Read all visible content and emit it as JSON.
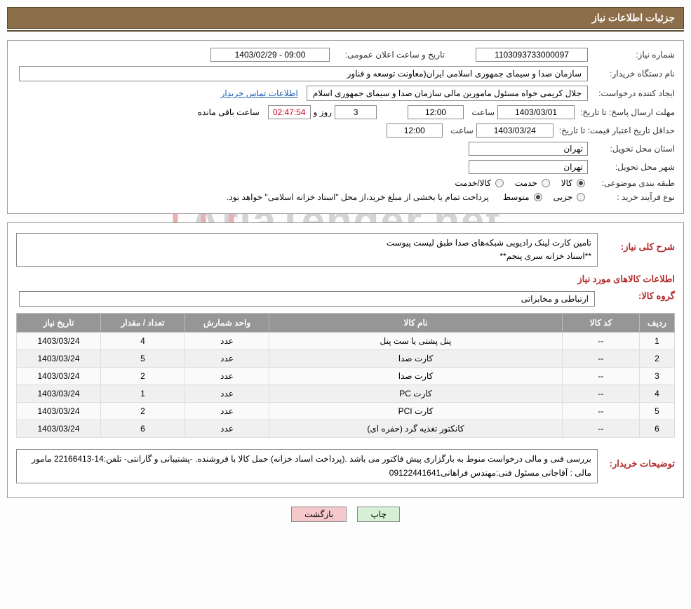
{
  "title": "جزئیات اطلاعات نیاز",
  "labels": {
    "reqNum": "شماره نیاز:",
    "announceDate": "تاریخ و ساعت اعلان عمومی:",
    "buyerOrg": "نام دستگاه خریدار:",
    "requester": "ایجاد کننده درخواست:",
    "contact": "اطلاعات تماس خریدار",
    "replyDeadline": "مهلت ارسال پاسخ: تا تاریخ:",
    "hour": "ساعت",
    "days": "روز و",
    "remaining": "ساعت باقی مانده",
    "priceValidity": "حداقل تاریخ اعتبار قیمت: تا تاریخ:",
    "province": "استان محل تحویل:",
    "city": "شهر محل تحویل:",
    "subjectClass": "طبقه بندی موضوعی:",
    "goods": "کالا",
    "service": "خدمت",
    "goodsService": "کالا/خدمت",
    "purchaseType": "نوع فرآیند خرید :",
    "partial": "جزیی",
    "medium": "متوسط",
    "purchaseNote": "پرداخت تمام یا بخشی از مبلغ خرید،از محل \"اسناد خزانه اسلامی\" خواهد بود.",
    "generalDesc": "شرح کلی نیاز:",
    "itemsInfo": "اطلاعات کالاهای مورد نیاز",
    "prodGroup": "گروه کالا:",
    "buyerNotes": "توضیحات خریدار:",
    "print": "چاپ",
    "back": "بازگشت"
  },
  "values": {
    "reqNum": "1103093733000097",
    "announceDate": "09:00 - 1403/02/29",
    "buyerOrg": "سازمان صدا و سیمای جمهوری اسلامی ایران(معاونت توسعه و فناور",
    "requester": "جلال کریمی خواه مسئول مامورین مالی  سازمان صدا و سیمای جمهوری اسلام",
    "replyDate": "1403/03/01",
    "replyHour": "12:00",
    "days": "3",
    "countdown": "02:47:54",
    "validDate": "1403/03/24",
    "validHour": "12:00",
    "province": "تهران",
    "city": "تهران",
    "generalDesc": "تامین کارت لینک رادیویی شبکه‌های صدا طبق لیست پیوست\n**اسناد خزانه سری پنجم**",
    "prodGroup": "ارتباطی و مخابراتی",
    "buyerNotes": "بررسی فنی و مالی درخواست منوط به بارگزاری پیش فاکتور می باشد .(پرداخت اسناد خزانه) حمل کالا با فروشنده. -پشتیبانی و گارانتی- تلفن:14-22166413 مامور مالی : آقاجانی مسئول فنی:مهندس فراهانی09122441641"
  },
  "table": {
    "headers": {
      "row": "ردیف",
      "code": "کد کالا",
      "name": "نام کالا",
      "unit": "واحد شمارش",
      "qty": "تعداد / مقدار",
      "date": "تاریخ نیاز"
    },
    "rows": [
      {
        "r": "1",
        "code": "--",
        "name": "پنل پشتی یا ست پنل",
        "unit": "عدد",
        "qty": "4",
        "date": "1403/03/24"
      },
      {
        "r": "2",
        "code": "--",
        "name": "کارت صدا",
        "unit": "عدد",
        "qty": "5",
        "date": "1403/03/24"
      },
      {
        "r": "3",
        "code": "--",
        "name": "کارت صدا",
        "unit": "عدد",
        "qty": "2",
        "date": "1403/03/24"
      },
      {
        "r": "4",
        "code": "--",
        "name": "کارت PC",
        "unit": "عدد",
        "qty": "1",
        "date": "1403/03/24"
      },
      {
        "r": "5",
        "code": "--",
        "name": "کارت PCI",
        "unit": "عدد",
        "qty": "2",
        "date": "1403/03/24"
      },
      {
        "r": "6",
        "code": "--",
        "name": "کانکتور تغذیه گرد (حفره ای)",
        "unit": "عدد",
        "qty": "6",
        "date": "1403/03/24"
      }
    ]
  },
  "watermark": "AriaTender.net"
}
